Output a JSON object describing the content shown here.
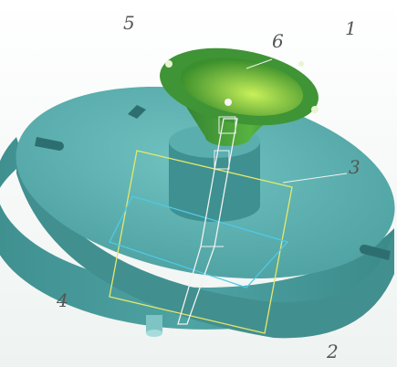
{
  "callouts": [
    {
      "label": "5"
    },
    {
      "label": "1"
    },
    {
      "label": "6"
    },
    {
      "label": "3"
    },
    {
      "label": "4"
    },
    {
      "label": "2"
    }
  ]
}
